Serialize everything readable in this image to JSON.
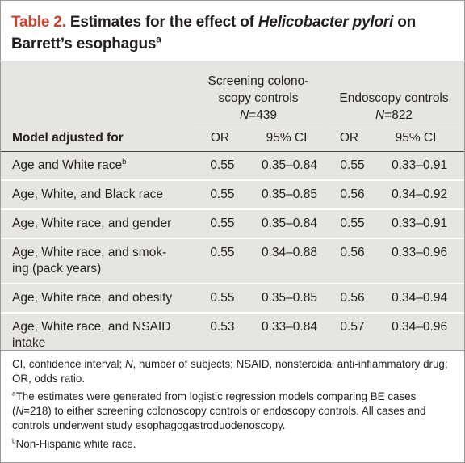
{
  "title": {
    "label": "Table 2.",
    "text": "Estimates for the effect of",
    "italic": "Helicobacter pylori",
    "text_end": "on",
    "line2": "Barrett’s esophagus",
    "sup": "a"
  },
  "table": {
    "groups": [
      {
        "lines": [
          "Screening colono-",
          "scopy controls"
        ],
        "n_symbol": "N",
        "n_value": "=439"
      },
      {
        "lines": [
          "Endoscopy controls"
        ],
        "n_symbol": "N",
        "n_value": "=822"
      }
    ],
    "columns": [
      "Model adjusted for",
      "OR",
      "95% CI",
      "OR",
      "95% CI"
    ],
    "rows": [
      {
        "label": [
          "Age and White race"
        ],
        "sup": "b",
        "values": [
          0.55,
          "0.35–0.84",
          0.55,
          "0.33–0.91"
        ]
      },
      {
        "label": [
          "Age, White, and Black race"
        ],
        "values": [
          0.55,
          "0.35–0.85",
          0.56,
          "0.34–0.92"
        ]
      },
      {
        "label": [
          "Age, White race, and gender"
        ],
        "values": [
          0.55,
          "0.35–0.84",
          0.55,
          "0.33–0.91"
        ]
      },
      {
        "label": [
          "Age, White race, and smok-",
          "ing (pack years)"
        ],
        "values": [
          0.55,
          "0.34–0.88",
          0.56,
          "0.33–0.96"
        ]
      },
      {
        "label": [
          "Age, White race, and obesity"
        ],
        "values": [
          0.55,
          "0.35–0.85",
          0.56,
          "0.34–0.94"
        ]
      },
      {
        "label": [
          "Age, White race, and NSAID",
          "intake"
        ],
        "values": [
          0.53,
          "0.33–0.84",
          0.57,
          "0.34–0.96"
        ]
      }
    ]
  },
  "footnotes": [
    [
      {
        "text": "CI, confidence interval; "
      },
      {
        "text": "N",
        "italic": true
      },
      {
        "text": ", number of subjects; NSAID, nonsteroidal anti-inflammatory drug; OR, odds ratio."
      }
    ],
    [
      {
        "text": "a",
        "sup": true
      },
      {
        "text": "The estimates were generated from logistic regression models comparing BE cases ("
      },
      {
        "text": "N",
        "italic": true
      },
      {
        "text": "=218) to either screening colonoscopy controls or endoscopy controls. All cases and controls underwent study esophagogastroduodenoscopy."
      }
    ],
    [
      {
        "text": "b",
        "sup": true
      },
      {
        "text": "Non-Hispanic white race."
      }
    ]
  ]
}
